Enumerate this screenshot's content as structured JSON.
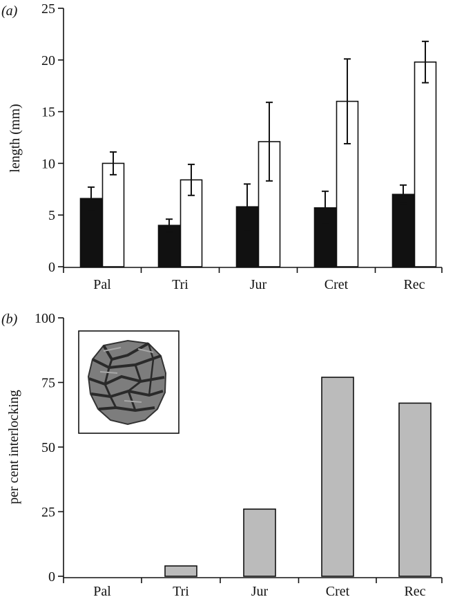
{
  "chart_data": [
    {
      "panel_label": "(a)",
      "type": "bar",
      "categories": [
        "Pal",
        "Tri",
        "Jur",
        "Cret",
        "Rec"
      ],
      "ylabel": "length (mm)",
      "ylim": [
        0,
        25
      ],
      "yticks": [
        0,
        5,
        10,
        15,
        20,
        25
      ],
      "legend": "none",
      "grid": false,
      "series": [
        {
          "color": "#111111",
          "values": [
            6.6,
            4.0,
            5.8,
            5.7,
            7.0
          ],
          "error": [
            1.1,
            0.6,
            2.2,
            1.6,
            0.9
          ]
        },
        {
          "color": "#ffffff",
          "values": [
            10.0,
            8.4,
            12.1,
            16.0,
            19.8
          ],
          "error": [
            1.1,
            1.5,
            3.8,
            4.1,
            2.0
          ]
        }
      ]
    },
    {
      "panel_label": "(b)",
      "type": "bar",
      "categories": [
        "Pal",
        "Tri",
        "Jur",
        "Cret",
        "Rec"
      ],
      "ylabel": "per cent interlocking",
      "ylim": [
        0,
        100
      ],
      "yticks": [
        0,
        25,
        50,
        75,
        100
      ],
      "legend": "none",
      "grid": false,
      "series": [
        {
          "color": "#bbbbbb",
          "values": [
            0,
            4,
            26,
            77,
            67
          ]
        }
      ],
      "inset": {
        "icon": "conifer-cone-scale-photo"
      }
    }
  ]
}
